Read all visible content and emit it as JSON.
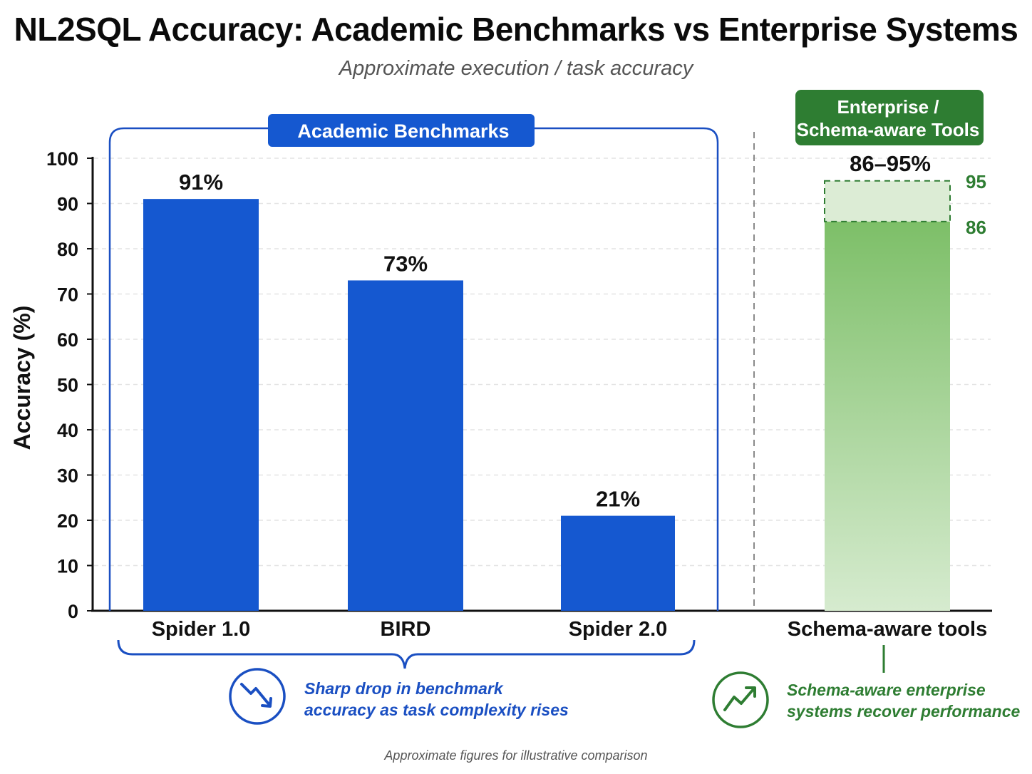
{
  "title": "NL2SQL Accuracy: Academic Benchmarks vs Enterprise Systems",
  "subtitle": "Approximate execution / task accuracy",
  "footnote": "Approximate figures for illustrative comparison",
  "colors": {
    "academic_blue": "#1558d0",
    "academic_dark": "#1040b8",
    "enterprise_green": "#2e7d32",
    "enterprise_bar_top": "#7dbf68",
    "enterprise_bar_bottom": "#d6ebcf"
  },
  "groups": {
    "academic_label": "Academic Benchmarks",
    "enterprise_label_lines": [
      "Enterprise /",
      "Schema-aware Tools"
    ]
  },
  "annotations": {
    "academic_icon": "trend-down-icon",
    "academic_note_lines": [
      "Sharp drop in benchmark",
      "accuracy as task complexity rises"
    ],
    "enterprise_icon": "trend-up-icon",
    "enterprise_note_lines": [
      "Schema-aware enterprise",
      "systems recover performance"
    ]
  },
  "chart_data": {
    "type": "bar",
    "title": "NL2SQL Accuracy: Academic Benchmarks vs Enterprise Systems",
    "subtitle": "Approximate execution / task accuracy",
    "ylabel": "Accuracy (%)",
    "xlabel": "",
    "ylim": [
      0,
      100
    ],
    "yticks": [
      0,
      10,
      20,
      30,
      40,
      50,
      60,
      70,
      80,
      90,
      100
    ],
    "grid": true,
    "categories": [
      "Spider 1.0",
      "BIRD",
      "Spider 2.0",
      "Schema-aware tools"
    ],
    "values": [
      91,
      73,
      21,
      86
    ],
    "value_labels": [
      "91%",
      "73%",
      "21%",
      "86–95%"
    ],
    "range_bar": {
      "category": "Schema-aware tools",
      "low": 86,
      "high": 95,
      "low_label": "86",
      "high_label": "95"
    }
  }
}
